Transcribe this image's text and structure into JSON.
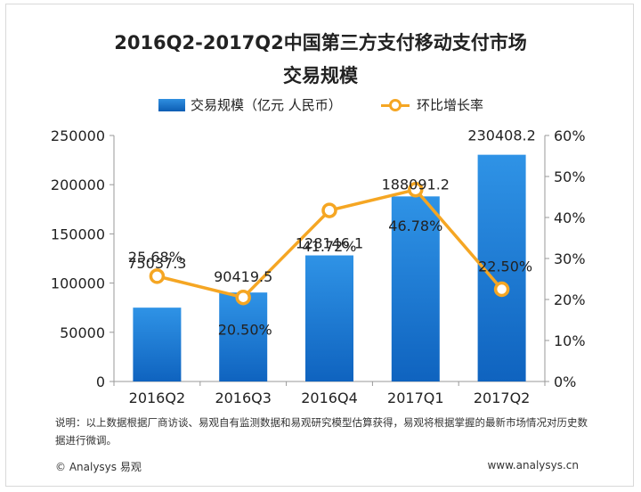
{
  "chart_data": {
    "type": "bar",
    "title_line1": "2016Q2-2017Q2中国第三方支付移动支付市场",
    "title_line2": "交易规模",
    "categories": [
      "2016Q2",
      "2016Q3",
      "2016Q4",
      "2017Q1",
      "2017Q2"
    ],
    "series": [
      {
        "name": "交易规模（亿元 人民币）",
        "type": "bar",
        "axis": "left",
        "values": [
          75037.3,
          90419.5,
          128146.1,
          188091.2,
          230408.2
        ],
        "labels": [
          "75037.3",
          "90419.5",
          "128146.1",
          "188091.2",
          "230408.2"
        ],
        "color": "#1a7bd6"
      },
      {
        "name": "环比增长率",
        "type": "line",
        "axis": "right",
        "values": [
          25.68,
          20.5,
          41.72,
          46.78,
          22.5
        ],
        "labels": [
          "25.68%",
          "20.50%",
          "41.72%",
          "46.78%",
          "22.50%"
        ],
        "color": "#f5a623"
      }
    ],
    "y_left": {
      "lim": [
        0,
        250000
      ],
      "ticks": [
        0,
        50000,
        100000,
        150000,
        200000,
        250000
      ],
      "tick_labels": [
        "0",
        "50000",
        "100000",
        "150000",
        "200000",
        "250000"
      ]
    },
    "y_right": {
      "lim": [
        0,
        60
      ],
      "ticks": [
        0,
        10,
        20,
        30,
        40,
        50,
        60
      ],
      "tick_labels": [
        "0%",
        "10%",
        "20%",
        "30%",
        "40%",
        "50%",
        "60%"
      ]
    },
    "grid": false,
    "legend_position": "top"
  },
  "note": "说明：以上数据根据厂商访谈、易观自有监测数据和易观研究模型估算获得，易观将根据掌握的最新市场情况对历史数据进行微调。",
  "footer": {
    "copyright": "© Analysys 易观",
    "website": "www.analysys.cn"
  }
}
